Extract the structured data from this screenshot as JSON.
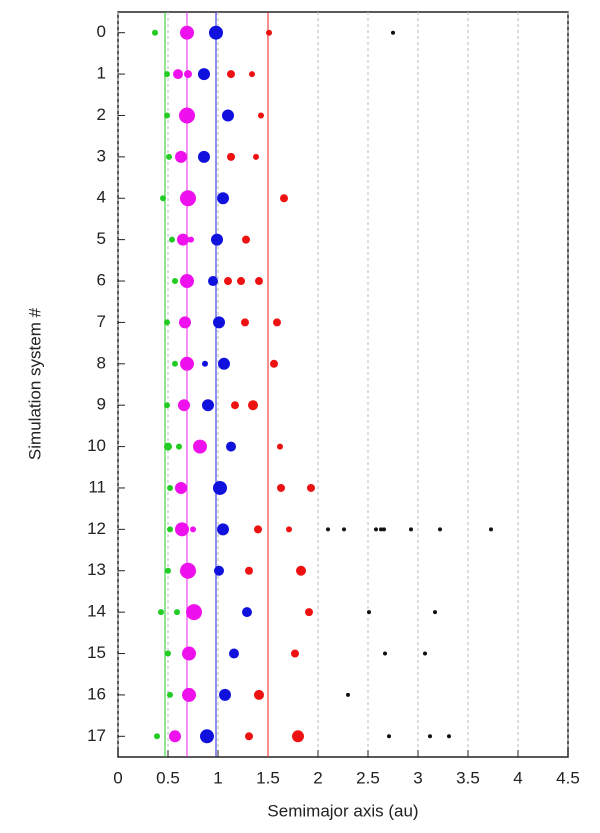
{
  "chart_data": {
    "type": "scatter",
    "xlabel": "Semimajor axis (au)",
    "ylabel": "Simulation system #",
    "xlim": [
      0,
      4.5
    ],
    "xticks": [
      0,
      0.5,
      1,
      1.5,
      2,
      2.5,
      3,
      3.5,
      4,
      4.5
    ],
    "ylim": [
      -0.5,
      17.5
    ],
    "y_inverted": true,
    "yticks": [
      0,
      1,
      2,
      3,
      4,
      5,
      6,
      7,
      8,
      9,
      10,
      11,
      12,
      13,
      14,
      15,
      16,
      17
    ],
    "grid": true,
    "reference_lines": [
      {
        "color": "#22cc22",
        "x": 0.47
      },
      {
        "color": "#ee22ee",
        "x": 0.69
      },
      {
        "color": "#2222dd",
        "x": 0.98
      },
      {
        "color": "#ee2222",
        "x": 1.5
      }
    ],
    "series": [
      {
        "color": "#22cc22",
        "x": [
          0.37,
          0.49,
          0.49,
          0.51,
          0.45,
          0.54,
          0.57,
          0.49,
          0.57,
          0.49,
          0.5,
          0.61,
          0.52,
          0.52,
          0.5,
          0.43,
          0.59,
          0.5,
          0.52,
          0.39
        ],
        "y": [
          0,
          1,
          2,
          3,
          4,
          5,
          6,
          7,
          8,
          9,
          10,
          10,
          11,
          12,
          13,
          14,
          14,
          15,
          16,
          17
        ],
        "sizes": [
          3,
          3,
          3,
          3,
          3,
          3,
          3,
          3,
          3,
          3,
          4,
          3,
          3,
          3,
          3,
          3,
          3,
          3,
          3,
          3
        ]
      },
      {
        "color": "#ee11ee",
        "x": [
          0.69,
          0.6,
          0.7,
          0.69,
          0.63,
          0.7,
          0.65,
          0.73,
          0.69,
          0.67,
          0.69,
          0.66,
          0.82,
          0.63,
          0.64,
          0.75,
          0.7,
          0.76,
          0.71,
          0.71,
          0.57
        ],
        "y": [
          0,
          1,
          1,
          2,
          3,
          4,
          5,
          5,
          6,
          7,
          8,
          9,
          10,
          11,
          12,
          12,
          13,
          14,
          15,
          16,
          17
        ],
        "sizes": [
          7,
          5,
          4,
          8,
          6,
          8,
          6,
          3,
          7,
          6,
          7,
          6,
          7,
          6,
          7,
          3,
          8,
          8,
          7,
          7,
          6
        ]
      },
      {
        "color": "#1111dd",
        "x": [
          0.98,
          0.86,
          1.1,
          0.86,
          1.05,
          0.99,
          0.95,
          1.01,
          0.87,
          1.06,
          0.9,
          1.13,
          1.02,
          1.05,
          1.01,
          1.29,
          1.16,
          1.07,
          0.89
        ],
        "y": [
          0,
          1,
          2,
          3,
          4,
          5,
          6,
          7,
          8,
          8,
          9,
          10,
          11,
          12,
          13,
          14,
          15,
          16,
          17
        ],
        "sizes": [
          7,
          6,
          6,
          6,
          6,
          6,
          5,
          6,
          3,
          6,
          6,
          5,
          7,
          6,
          5,
          5,
          5,
          6,
          7
        ]
      },
      {
        "color": "#ee1111",
        "x": [
          1.51,
          1.13,
          1.34,
          1.43,
          1.13,
          1.38,
          1.66,
          1.28,
          1.1,
          1.23,
          1.41,
          1.27,
          1.59,
          1.56,
          1.17,
          1.35,
          1.62,
          1.63,
          1.93,
          1.4,
          1.71,
          1.31,
          1.83,
          1.91,
          1.77,
          1.41,
          1.31,
          1.8
        ],
        "y": [
          0,
          1,
          1,
          2,
          3,
          3,
          4,
          5,
          6,
          6,
          6,
          7,
          7,
          8,
          9,
          9,
          10,
          11,
          11,
          12,
          12,
          13,
          13,
          14,
          15,
          16,
          17,
          17
        ],
        "sizes": [
          3,
          4,
          3,
          3,
          4,
          3,
          4,
          4,
          4,
          4,
          4,
          4,
          4,
          4,
          4,
          5,
          3,
          4,
          4,
          4,
          3,
          4,
          5,
          4,
          4,
          5,
          4,
          6
        ]
      },
      {
        "color": "#111111",
        "x": [
          2.75,
          2.1,
          2.26,
          2.58,
          2.63,
          2.66,
          2.93,
          3.22,
          3.73,
          2.51,
          3.17,
          2.67,
          3.07,
          2.3,
          2.71,
          3.12,
          3.31
        ],
        "y": [
          0,
          12,
          12,
          12,
          12,
          12,
          12,
          12,
          12,
          14,
          14,
          15,
          15,
          16,
          17,
          17,
          17
        ],
        "sizes": [
          2,
          2,
          2,
          2,
          2,
          2,
          2,
          2,
          2,
          2,
          2,
          2,
          2,
          2,
          2,
          2,
          2
        ]
      }
    ]
  }
}
